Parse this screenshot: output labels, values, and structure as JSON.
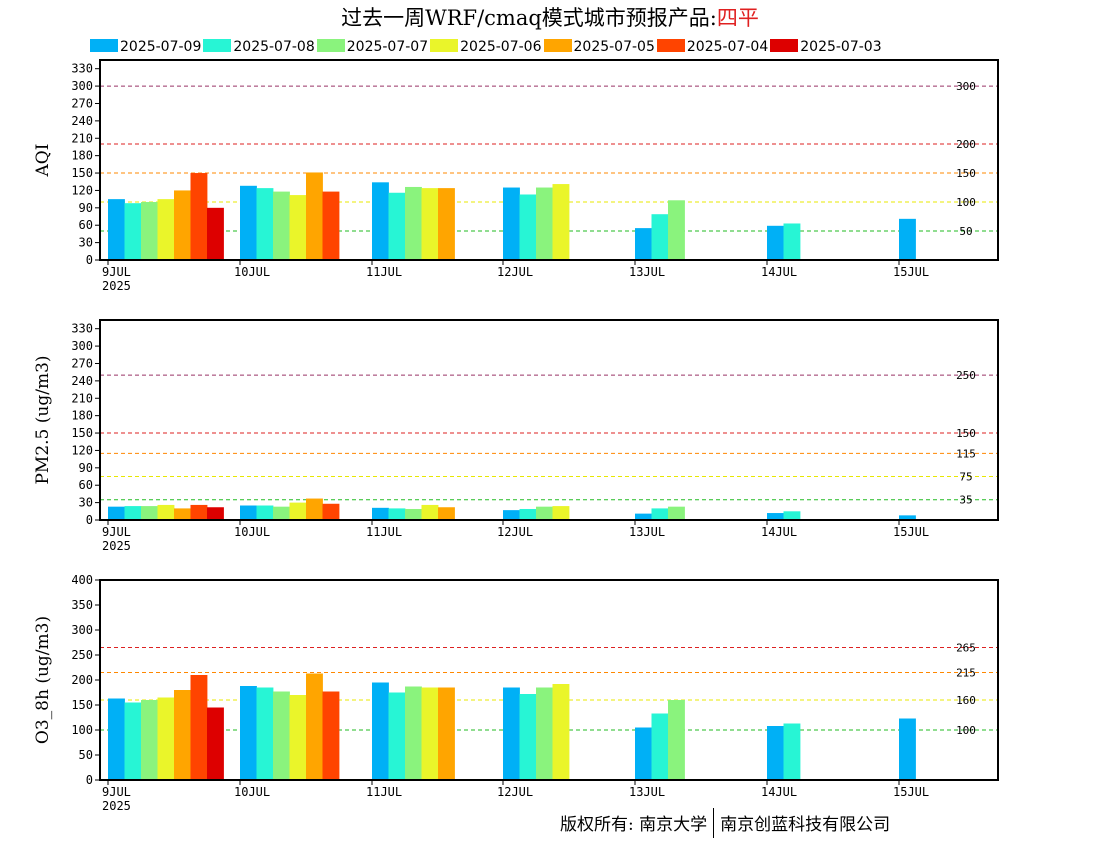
{
  "title": {
    "prefix": "过去一周WRF/cmaq模式城市预报产品:",
    "site": "四平"
  },
  "colors": {
    "series": [
      "#00b0f6",
      "#27f5d5",
      "#8af37d",
      "#eaf52a",
      "#ffa500",
      "#ff4400",
      "#dd0000"
    ],
    "thresholds": {
      "green": "#22bb22",
      "yellow": "#e8e800",
      "orange": "#ff8800",
      "red": "#dd2222",
      "purple": "#993366"
    }
  },
  "x_axis": {
    "ticks": [
      "9JUL",
      "10JUL",
      "11JUL",
      "12JUL",
      "13JUL",
      "14JUL",
      "15JUL"
    ],
    "year": "2025"
  },
  "copyright": {
    "left": "版权所有: 南京大学",
    "right": "南京创蓝科技有限公司"
  },
  "chart_data": [
    {
      "type": "bar",
      "ylabel": "AQI",
      "ylim": [
        0,
        345
      ],
      "yticks": [
        0,
        30,
        60,
        90,
        120,
        150,
        180,
        210,
        240,
        270,
        300,
        330
      ],
      "categories": [
        "9JUL",
        "10JUL",
        "11JUL",
        "12JUL",
        "13JUL",
        "14JUL",
        "15JUL"
      ],
      "series": [
        {
          "name": "2025-07-09",
          "values": [
            105,
            128,
            134,
            125,
            55,
            59,
            71
          ]
        },
        {
          "name": "2025-07-08",
          "values": [
            98,
            124,
            116,
            113,
            79,
            63,
            null
          ]
        },
        {
          "name": "2025-07-07",
          "values": [
            100,
            118,
            126,
            125,
            103,
            null,
            null
          ]
        },
        {
          "name": "2025-07-06",
          "values": [
            105,
            112,
            124,
            131,
            null,
            null,
            null
          ]
        },
        {
          "name": "2025-07-05",
          "values": [
            120,
            151,
            124,
            null,
            null,
            null,
            null
          ]
        },
        {
          "name": "2025-07-04",
          "values": [
            150,
            118,
            null,
            null,
            null,
            null,
            null
          ]
        },
        {
          "name": "2025-07-03",
          "values": [
            90,
            null,
            null,
            null,
            null,
            null,
            null
          ]
        }
      ],
      "thresholds": [
        {
          "value": 50,
          "label": "50",
          "color": "green"
        },
        {
          "value": 100,
          "label": "100",
          "color": "yellow"
        },
        {
          "value": 150,
          "label": "150",
          "color": "orange"
        },
        {
          "value": 200,
          "label": "200",
          "color": "red"
        },
        {
          "value": 300,
          "label": "300",
          "color": "purple"
        }
      ]
    },
    {
      "type": "bar",
      "ylabel": "PM2.5 (ug/m3)",
      "ylim": [
        0,
        345
      ],
      "yticks": [
        0,
        30,
        60,
        90,
        120,
        150,
        180,
        210,
        240,
        270,
        300,
        330
      ],
      "categories": [
        "9JUL",
        "10JUL",
        "11JUL",
        "12JUL",
        "13JUL",
        "14JUL",
        "15JUL"
      ],
      "series": [
        {
          "name": "2025-07-09",
          "values": [
            23,
            25,
            21,
            17,
            11,
            12,
            8
          ]
        },
        {
          "name": "2025-07-08",
          "values": [
            24,
            25,
            20,
            19,
            20,
            15,
            null
          ]
        },
        {
          "name": "2025-07-07",
          "values": [
            24,
            23,
            19,
            23,
            23,
            null,
            null
          ]
        },
        {
          "name": "2025-07-06",
          "values": [
            26,
            30,
            26,
            24,
            null,
            null,
            null
          ]
        },
        {
          "name": "2025-07-05",
          "values": [
            20,
            37,
            22,
            null,
            null,
            null,
            null
          ]
        },
        {
          "name": "2025-07-04",
          "values": [
            26,
            28,
            null,
            null,
            null,
            null,
            null
          ]
        },
        {
          "name": "2025-07-03",
          "values": [
            22,
            null,
            null,
            null,
            null,
            null,
            null
          ]
        }
      ],
      "thresholds": [
        {
          "value": 35,
          "label": "35",
          "color": "green"
        },
        {
          "value": 75,
          "label": "75",
          "color": "yellow"
        },
        {
          "value": 115,
          "label": "115",
          "color": "orange"
        },
        {
          "value": 150,
          "label": "150",
          "color": "red"
        },
        {
          "value": 250,
          "label": "250",
          "color": "purple"
        }
      ]
    },
    {
      "type": "bar",
      "ylabel": "O3_8h (ug/m3)",
      "ylim": [
        0,
        400
      ],
      "yticks": [
        0,
        50,
        100,
        150,
        200,
        250,
        300,
        350,
        400
      ],
      "categories": [
        "9JUL",
        "10JUL",
        "11JUL",
        "12JUL",
        "13JUL",
        "14JUL",
        "15JUL"
      ],
      "series": [
        {
          "name": "2025-07-09",
          "values": [
            163,
            188,
            195,
            185,
            105,
            108,
            123
          ]
        },
        {
          "name": "2025-07-08",
          "values": [
            155,
            185,
            175,
            172,
            133,
            113,
            null
          ]
        },
        {
          "name": "2025-07-07",
          "values": [
            160,
            177,
            187,
            185,
            160,
            null,
            null
          ]
        },
        {
          "name": "2025-07-06",
          "values": [
            165,
            170,
            185,
            192,
            null,
            null,
            null
          ]
        },
        {
          "name": "2025-07-05",
          "values": [
            180,
            213,
            185,
            null,
            null,
            null,
            null
          ]
        },
        {
          "name": "2025-07-04",
          "values": [
            210,
            177,
            null,
            null,
            null,
            null,
            null
          ]
        },
        {
          "name": "2025-07-03",
          "values": [
            145,
            null,
            null,
            null,
            null,
            null,
            null
          ]
        }
      ],
      "thresholds": [
        {
          "value": 100,
          "label": "100",
          "color": "green"
        },
        {
          "value": 160,
          "label": "160",
          "color": "yellow"
        },
        {
          "value": 215,
          "label": "215",
          "color": "orange"
        },
        {
          "value": 265,
          "label": "265",
          "color": "red"
        }
      ]
    }
  ]
}
